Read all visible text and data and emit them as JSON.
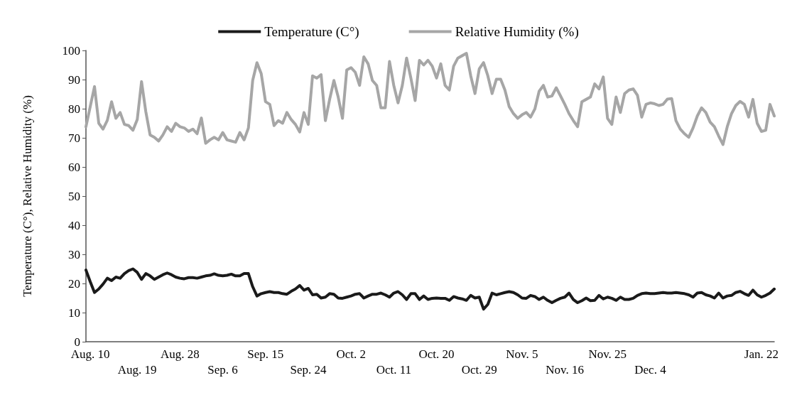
{
  "chart_data": {
    "type": "line",
    "ylabel": "Temperature (C°), Relative Humidity (%)",
    "categories": [
      null,
      "Aug. 10",
      null,
      null,
      null,
      null,
      null,
      null,
      null,
      null,
      null,
      null,
      "Aug. 19",
      null,
      null,
      null,
      null,
      null,
      null,
      null,
      null,
      null,
      "Aug. 28",
      null,
      null,
      null,
      null,
      null,
      null,
      null,
      null,
      null,
      "Sep. 6",
      null,
      null,
      null,
      null,
      null,
      null,
      null,
      null,
      null,
      "Sep. 15",
      null,
      null,
      null,
      null,
      null,
      null,
      null,
      null,
      null,
      "Sep. 24",
      null,
      null,
      null,
      null,
      null,
      null,
      null,
      null,
      null,
      "Oct. 2",
      null,
      null,
      null,
      null,
      null,
      null,
      null,
      null,
      null,
      "Oct. 11",
      null,
      null,
      null,
      null,
      null,
      null,
      null,
      null,
      null,
      "Oct. 20",
      null,
      null,
      null,
      null,
      null,
      null,
      null,
      null,
      null,
      "Oct. 29",
      null,
      null,
      null,
      null,
      null,
      null,
      null,
      null,
      null,
      "Nov. 5",
      null,
      null,
      null,
      null,
      null,
      null,
      null,
      null,
      null,
      "Nov. 16",
      null,
      null,
      null,
      null,
      null,
      null,
      null,
      null,
      null,
      "Nov. 25",
      null,
      null,
      null,
      null,
      null,
      null,
      null,
      null,
      null,
      "Dec. 4",
      null,
      null,
      null,
      null,
      null,
      null,
      null,
      null,
      null,
      null,
      null,
      null,
      null,
      null,
      null,
      null,
      null,
      null,
      null,
      null,
      null,
      null,
      null,
      null,
      null,
      "Jan. 22",
      null,
      null,
      null
    ],
    "series": [
      {
        "name": "Temperature (C°)",
        "color": "#1a1a1a",
        "values": [
          24.6,
          20.6,
          16.9,
          18.1,
          19.8,
          21.8,
          21,
          22.2,
          21.8,
          23.4,
          24.4,
          25,
          23.8,
          21.4,
          23.4,
          22.6,
          21.4,
          22.2,
          23,
          23.6,
          23,
          22.2,
          21.8,
          21.6,
          22,
          22,
          21.8,
          22.2,
          22.6,
          22.8,
          23.3,
          22.8,
          22.6,
          22.8,
          23.2,
          22.6,
          22.6,
          23.4,
          23.4,
          18.9,
          15.7,
          16.5,
          16.9,
          17.2,
          16.9,
          16.9,
          16.5,
          16.3,
          17.3,
          18.1,
          19.3,
          17.7,
          18.3,
          16.1,
          16.3,
          15,
          15.3,
          16.5,
          16.3,
          15,
          14.9,
          15.3,
          15.7,
          16.3,
          16.5,
          15,
          15.7,
          16.3,
          16.3,
          16.7,
          16.1,
          15.3,
          16.7,
          17.2,
          16.1,
          14.5,
          16.5,
          16.5,
          14.5,
          15.7,
          14.5,
          14.9,
          15,
          14.9,
          14.9,
          14.2,
          15.5,
          15,
          14.7,
          14.2,
          15.9,
          15,
          15.3,
          11.2,
          12.8,
          16.7,
          16.1,
          16.5,
          16.9,
          17.2,
          16.9,
          16.1,
          15,
          14.9,
          15.9,
          15.5,
          14.5,
          15.3,
          14.2,
          13.4,
          14.2,
          14.9,
          15.3,
          16.7,
          14.5,
          13.4,
          14.1,
          15,
          14.1,
          14.2,
          15.9,
          14.7,
          15.3,
          14.9,
          14.2,
          15.3,
          14.5,
          14.5,
          14.9,
          15.9,
          16.5,
          16.7,
          16.5,
          16.5,
          16.7,
          16.9,
          16.7,
          16.7,
          16.9,
          16.7,
          16.5,
          16.1,
          15.3,
          16.7,
          16.9,
          16.1,
          15.7,
          15,
          16.7,
          15,
          15.7,
          15.9,
          16.9,
          17.3,
          16.5,
          15.9,
          17.7,
          16.1,
          15.3,
          15.9,
          16.7,
          18.1
        ]
      },
      {
        "name": "Relative Humidity (%)",
        "color": "#a6a6a6",
        "values": [
          73.8,
          80.7,
          87.6,
          75,
          73,
          76,
          82.4,
          76.7,
          78.7,
          74.6,
          74.2,
          72.6,
          76.3,
          89.3,
          79,
          71,
          70.2,
          68.9,
          71,
          73.8,
          72.2,
          75,
          73.8,
          73.4,
          72.2,
          73,
          71.4,
          76.8,
          68.1,
          69.3,
          70.2,
          69.3,
          71.8,
          69.3,
          68.9,
          68.5,
          71.8,
          69.3,
          73.4,
          89.7,
          95.8,
          92,
          82.4,
          81.5,
          74.2,
          75.9,
          75,
          78.7,
          76.3,
          74.6,
          72,
          78.7,
          74.6,
          91.3,
          90.5,
          91.7,
          75.9,
          83.2,
          89.7,
          84,
          76.7,
          93.3,
          94.1,
          92.5,
          88,
          97.8,
          95.4,
          89.7,
          88,
          80.3,
          80.3,
          96.2,
          88,
          82,
          88,
          97.4,
          90.5,
          82.8,
          96.6,
          95,
          96.6,
          94.6,
          90.5,
          95.4,
          88,
          86.4,
          94.6,
          97.4,
          98.2,
          99,
          91.3,
          85.2,
          93.7,
          95.8,
          91.3,
          85.2,
          90.1,
          90.1,
          86.4,
          80.7,
          78.3,
          76.7,
          77.9,
          78.7,
          77.1,
          79.9,
          86,
          88,
          84,
          84.4,
          87.2,
          84.4,
          81.5,
          78.3,
          75.9,
          73.8,
          82.4,
          83.2,
          84,
          88.5,
          86.8,
          90.9,
          76.7,
          74.6,
          84,
          78.7,
          85.2,
          86.4,
          86.8,
          84.6,
          77.1,
          81.5,
          82,
          81.7,
          81.1,
          81.5,
          83.3,
          83.5,
          75.9,
          73,
          71.4,
          70.2,
          73.4,
          77.5,
          80.3,
          78.7,
          75.4,
          73.8,
          70.6,
          67.7,
          73.8,
          78.3,
          81.1,
          82.5,
          81.5,
          77.1,
          83.2,
          75,
          72.2,
          72.6,
          81.5,
          77.5
        ]
      }
    ],
    "ylim": [
      0,
      100
    ],
    "yticks": [
      0,
      10,
      20,
      30,
      40,
      50,
      60,
      70,
      80,
      90,
      100
    ],
    "grid": false,
    "legend": "top",
    "marker": "none",
    "line_style": "solid"
  }
}
